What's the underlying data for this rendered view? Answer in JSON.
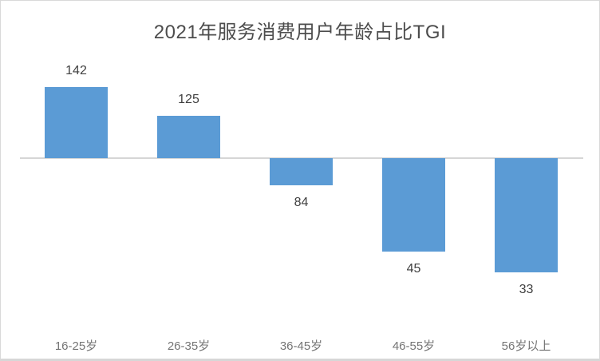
{
  "window": {
    "background_color": "#FFFFFF",
    "border_color": "#D9D9D9"
  },
  "chart_data": {
    "type": "bar",
    "title": "2021年服务消费用户年龄占比TGI",
    "categories": [
      "16-25岁",
      "26-35岁",
      "36-45岁",
      "46-55岁",
      "56岁以上"
    ],
    "values": [
      142,
      125,
      84,
      45,
      33
    ],
    "baseline": 100,
    "xlabel": "",
    "ylabel": "",
    "grid": false,
    "legend": "none",
    "data_labels": "outside-end",
    "orientation": "vertical",
    "colors": {
      "bar": "#5B9BD5",
      "axis_line": "#D6D6D6",
      "value_label": "#404040",
      "category_label": "#757575",
      "title": "#4D4D4D"
    }
  }
}
